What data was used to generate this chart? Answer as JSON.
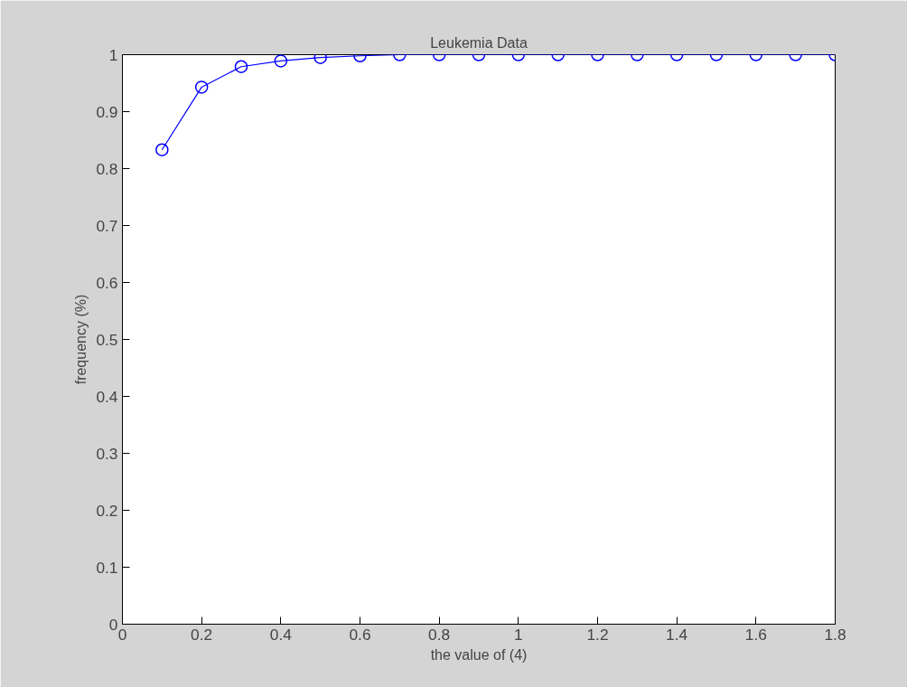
{
  "chart_data": {
    "type": "line",
    "title": "Leukemia Data",
    "xlabel": "the value of (4)",
    "ylabel": "frequency (%)",
    "x": [
      0.1,
      0.2,
      0.3,
      0.4,
      0.5,
      0.6,
      0.7,
      0.8,
      0.9,
      1.0,
      1.1,
      1.2,
      1.3,
      1.4,
      1.5,
      1.6,
      1.7,
      1.8
    ],
    "series": [
      {
        "color": "#0000ff",
        "values": [
          0.833,
          0.943,
          0.979,
          0.989,
          0.995,
          0.998,
          1,
          1,
          1,
          1,
          1,
          1,
          1,
          1,
          1,
          1,
          1,
          1
        ]
      }
    ],
    "xlim": [
      0,
      1.8
    ],
    "ylim": [
      0,
      1
    ],
    "xticks": [
      0,
      0.2,
      0.4,
      0.6,
      0.8,
      1,
      1.2,
      1.4,
      1.6,
      1.8
    ],
    "yticks": [
      0,
      0.1,
      0.2,
      0.3,
      0.4,
      0.5,
      0.6,
      0.7,
      0.8,
      0.9,
      1
    ],
    "marker": "circle",
    "line_style": "solid",
    "grid": false
  }
}
